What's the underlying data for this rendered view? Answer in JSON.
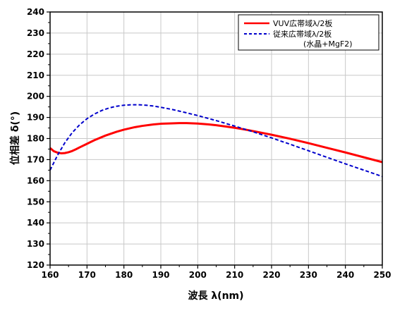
{
  "chart_data": {
    "type": "line",
    "xlabel": "波長 λ(nm)",
    "ylabel": "位相差 δ(°)",
    "xlim": [
      160,
      250
    ],
    "ylim": [
      120,
      240
    ],
    "x_ticks": [
      160,
      170,
      180,
      190,
      200,
      210,
      220,
      230,
      240,
      250
    ],
    "y_ticks": [
      120,
      130,
      140,
      150,
      160,
      170,
      180,
      190,
      200,
      210,
      220,
      230,
      240
    ],
    "grid": true,
    "legend_position": "top-right",
    "series": [
      {
        "name": "VUV広帯域λ/2板",
        "color": "#ff0000",
        "style": "solid",
        "x": [
          160,
          161,
          162,
          163,
          164,
          165,
          166,
          167,
          168,
          170,
          172,
          175,
          178,
          180,
          183,
          185,
          188,
          190,
          193,
          195,
          197,
          200,
          203,
          205,
          208,
          210,
          213,
          215,
          220,
          225,
          230,
          235,
          240,
          245,
          250
        ],
        "y": [
          175.5,
          174.0,
          173.3,
          173.0,
          173.1,
          173.5,
          174.1,
          174.9,
          175.8,
          177.5,
          179.2,
          181.4,
          183.2,
          184.2,
          185.4,
          186.0,
          186.7,
          187.0,
          187.2,
          187.3,
          187.3,
          187.1,
          186.7,
          186.3,
          185.6,
          185.1,
          184.2,
          183.5,
          181.8,
          179.9,
          177.8,
          175.6,
          173.4,
          171.1,
          168.8
        ]
      },
      {
        "name": "従来広帯域λ/2板",
        "name_sub": "(水晶+MgF2)",
        "color": "#0000cc",
        "style": "dashed",
        "x": [
          160,
          162,
          164,
          166,
          168,
          170,
          172,
          174,
          176,
          178,
          180,
          182,
          184,
          186,
          188,
          190,
          193,
          196,
          200,
          205,
          210,
          215,
          220,
          225,
          230,
          235,
          240,
          245,
          250
        ],
        "y": [
          165.0,
          172.0,
          178.0,
          182.8,
          186.5,
          189.4,
          191.6,
          193.3,
          194.5,
          195.3,
          195.8,
          196.0,
          196.0,
          195.8,
          195.4,
          194.8,
          193.8,
          192.6,
          190.9,
          188.5,
          185.9,
          183.2,
          180.3,
          177.3,
          174.2,
          171.1,
          168.0,
          165.0,
          162.0
        ]
      }
    ]
  }
}
